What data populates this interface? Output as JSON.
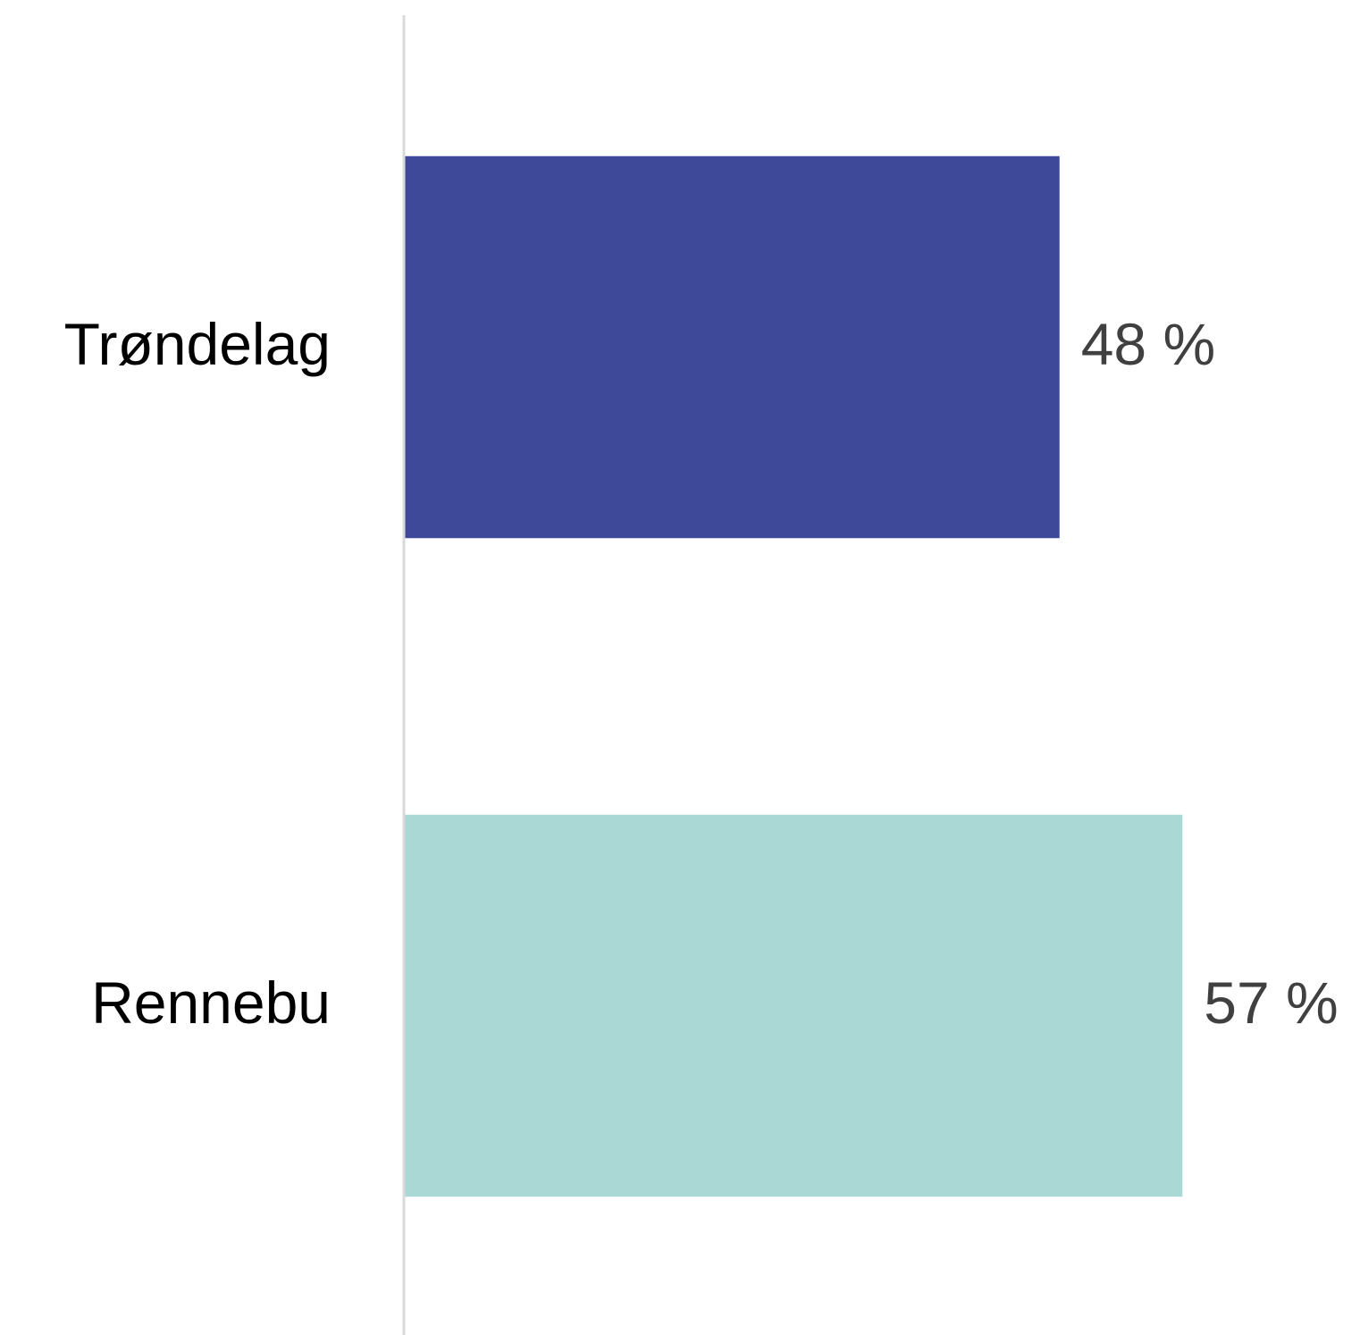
{
  "chart_data": {
    "type": "hbar",
    "categories": [
      "Trøndelag",
      "Rennebu"
    ],
    "values": [
      48,
      57
    ],
    "value_labels": [
      "48 %",
      "57 %"
    ],
    "colors": [
      "#3e4a99",
      "#a9d8d5"
    ],
    "xlim": [
      0,
      70
    ]
  }
}
